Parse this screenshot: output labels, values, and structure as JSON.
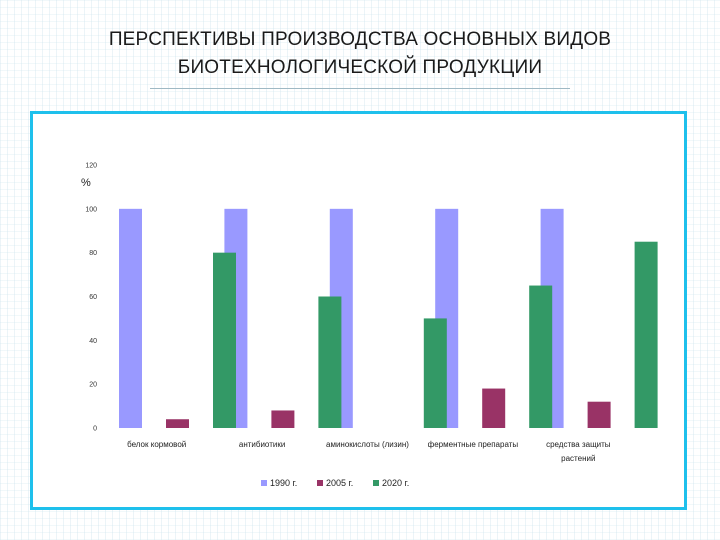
{
  "slide": {
    "title_line1": "ПЕРСПЕКТИВЫ ПРОИЗВОДСТВА ОСНОВНЫХ ВИДОВ",
    "title_line2": "БИОТЕХНОЛОГИЧЕСКОЙ ПРОДУКЦИИ"
  },
  "colors": {
    "series_1990": "#9999ff",
    "series_2005": "#993366",
    "series_2020": "#339966",
    "frame_border": "#1ec0ec"
  },
  "chart_data": {
    "type": "bar",
    "title": "",
    "xlabel": "",
    "ylabel": "%",
    "ylim": [
      0,
      120
    ],
    "yticks": [
      "0",
      "20",
      "40",
      "60",
      "80",
      "100",
      "120"
    ],
    "grid": false,
    "legend_position": "bottom",
    "categories": [
      [
        "белок кормовой"
      ],
      [
        "антибиотики"
      ],
      [
        "аминокислоты (лизин)"
      ],
      [
        "ферментные препараты"
      ],
      [
        "средства защиты",
        "растений"
      ]
    ],
    "series": [
      {
        "name": "1990 г.",
        "values": [
          100,
          100,
          100,
          100,
          100
        ]
      },
      {
        "name": "2005 г.",
        "values": [
          4,
          8,
          0,
          18,
          12
        ]
      },
      {
        "name": "2020 г.",
        "values": [
          80,
          60,
          50,
          65,
          85
        ]
      }
    ]
  }
}
